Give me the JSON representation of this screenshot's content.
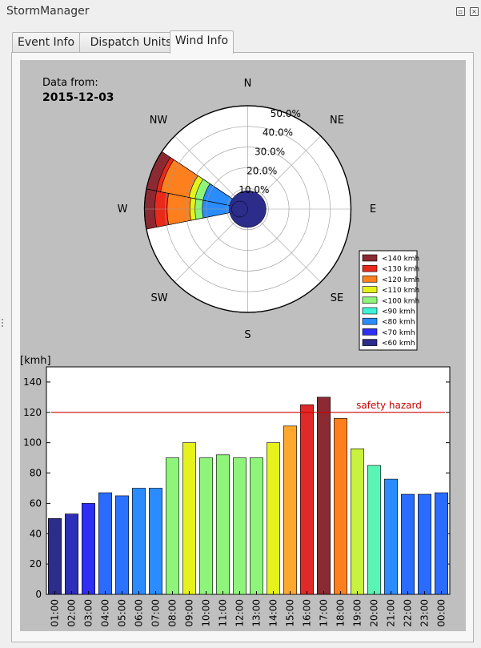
{
  "window": {
    "title": "StormManager",
    "float_icon": "float-icon",
    "close_icon": "close-icon"
  },
  "tabs": [
    {
      "label": "Event Info",
      "active": false
    },
    {
      "label": "Dispatch Units",
      "active": false
    },
    {
      "label": "Wind Info",
      "active": true
    }
  ],
  "wind_info": {
    "data_from_label": "Data from:",
    "date": "2015-12-03",
    "compass": {
      "N": "N",
      "NE": "NE",
      "E": "E",
      "SE": "SE",
      "S": "S",
      "SW": "SW",
      "W": "W",
      "NW": "NW"
    },
    "radial_labels": [
      "10.0%",
      "20.0%",
      "30.0%",
      "40.0%",
      "50.0%"
    ],
    "legend": [
      {
        "label": "<140 kmh",
        "color": "#8b2a32"
      },
      {
        "label": "<130 kmh",
        "color": "#e82a1a"
      },
      {
        "label": "<120 kmh",
        "color": "#fe7f1e"
      },
      {
        "label": "<110 kmh",
        "color": "#e6f21c"
      },
      {
        "label": "<100 kmh",
        "color": "#8ef57a"
      },
      {
        "label": "<90 kmh",
        "color": "#3ef2d4"
      },
      {
        "label": "<80 kmh",
        "color": "#2a8cff"
      },
      {
        "label": "<70 kmh",
        "color": "#2e2ef5"
      },
      {
        "label": "<60 kmh",
        "color": "#2c2c8a"
      }
    ]
  },
  "chart_data": [
    {
      "type": "rose",
      "directions": [
        "N",
        "NE",
        "E",
        "SE",
        "S",
        "SW",
        "W",
        "NW"
      ],
      "rmax": 50,
      "center_disc_color": "#2c2c8a",
      "sectors": [
        {
          "direction": "W",
          "values": [
            {
              "color": "#2a8cff",
              "r": 22.0
            },
            {
              "color": "#8ef57a",
              "r": 25.5
            },
            {
              "color": "#e6f21c",
              "r": 28.0
            },
            {
              "color": "#fe7f1e",
              "r": 39.0
            },
            {
              "color": "#e82a1a",
              "r": 45.0
            },
            {
              "color": "#8b2a32",
              "r": 50.0
            }
          ]
        },
        {
          "direction": "WNW",
          "values": [
            {
              "color": "#2a8cff",
              "r": 22.0
            },
            {
              "color": "#8ef57a",
              "r": 26.0
            },
            {
              "color": "#e6f21c",
              "r": 29.0
            },
            {
              "color": "#fe7f1e",
              "r": 43.0
            },
            {
              "color": "#e82a1a",
              "r": 45.0
            },
            {
              "color": "#8b2a32",
              "r": 50.0
            }
          ]
        }
      ]
    },
    {
      "type": "bar",
      "ylabel": "[kmh]",
      "ylim": [
        0,
        150
      ],
      "yticks": [
        0,
        20,
        40,
        60,
        80,
        100,
        120,
        140
      ],
      "categories": [
        "01:00",
        "02:00",
        "03:00",
        "04:00",
        "05:00",
        "06:00",
        "07:00",
        "08:00",
        "09:00",
        "10:00",
        "11:00",
        "12:00",
        "13:00",
        "14:00",
        "15:00",
        "16:00",
        "17:00",
        "18:00",
        "19:00",
        "20:00",
        "21:00",
        "22:00",
        "23:00",
        "00:00"
      ],
      "values": [
        50,
        53,
        60,
        67,
        65,
        70,
        70,
        90,
        100,
        90,
        92,
        90,
        90,
        100,
        111,
        125,
        130,
        116,
        96,
        85,
        76,
        66,
        66,
        67
      ],
      "colors": [
        "#2c2c8a",
        "#2e2eb8",
        "#2e2ef5",
        "#2a6cff",
        "#2a72ff",
        "#2a8cff",
        "#2a8cff",
        "#8ef57a",
        "#e6f21c",
        "#8ef57a",
        "#8ef57a",
        "#8ef57a",
        "#8ef57a",
        "#e6f21c",
        "#fea82e",
        "#e02a2a",
        "#8b2a32",
        "#fe7f1e",
        "#c8f23c",
        "#5af5b4",
        "#2a8cff",
        "#2a6cff",
        "#2a6cff",
        "#2a6cff"
      ],
      "hazard_line": {
        "value": 120,
        "label": "safety hazard",
        "color": "#cc0000"
      }
    }
  ]
}
